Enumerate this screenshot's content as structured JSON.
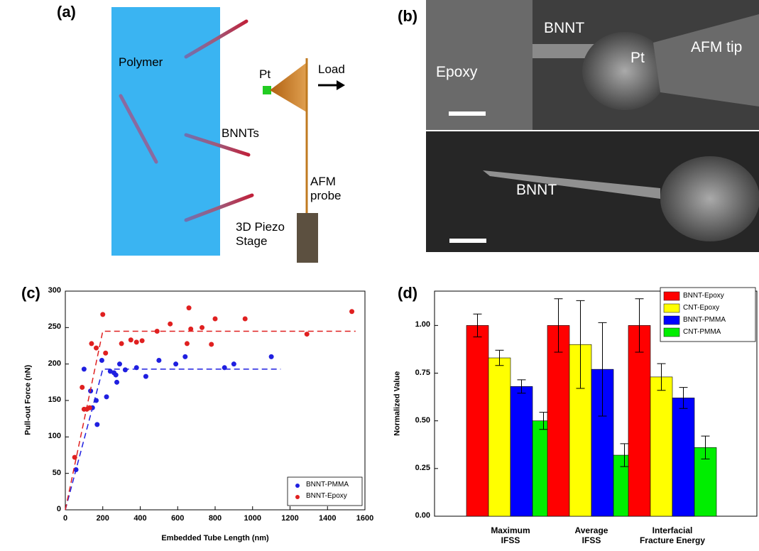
{
  "panel_a": {
    "label": "(a)",
    "polymer": "Polymer",
    "pt": "Pt",
    "load": "Load",
    "bnnts": "BNNTs",
    "probe": "AFM\nprobe",
    "stage": "3D Piezo\nStage"
  },
  "panel_b": {
    "label": "(b)",
    "top": {
      "epoxy": "Epoxy",
      "bnnt": "BNNT",
      "pt": "Pt",
      "tip": "AFM tip"
    },
    "bottom": {
      "bnnt": "BNNT"
    }
  },
  "chart_data": [
    {
      "type": "scatter",
      "label": "(c)",
      "x_label": "Embedded Tube Length (nm)",
      "y_label": "Pull-out Force (nN)",
      "xlim": [
        0,
        1600
      ],
      "xticks": [
        0,
        200,
        400,
        600,
        800,
        1000,
        1200,
        1400,
        1600
      ],
      "ylim": [
        0,
        300
      ],
      "yticks": [
        0,
        50,
        100,
        150,
        200,
        250,
        300
      ],
      "legend": "lower right",
      "series": [
        {
          "name": "BNNT-PMMA",
          "color": "#1f1fe0",
          "x": [
            57,
            100,
            135,
            145,
            165,
            170,
            195,
            220,
            240,
            260,
            270,
            275,
            290,
            320,
            380,
            430,
            500,
            590,
            640,
            850,
            900,
            1100
          ],
          "values": [
            55,
            193,
            163,
            140,
            150,
            117,
            205,
            155,
            190,
            188,
            185,
            175,
            200,
            192,
            195,
            183,
            205,
            200,
            210,
            195,
            200,
            210
          ],
          "fit_x": [
            0,
            200,
            1150
          ],
          "fit_values": [
            0,
            193,
            193
          ]
        },
        {
          "name": "BNNT-Epoxy",
          "color": "#e02020",
          "x": [
            50,
            90,
            100,
            115,
            130,
            140,
            165,
            200,
            215,
            300,
            350,
            380,
            410,
            490,
            560,
            650,
            660,
            670,
            730,
            780,
            800,
            960,
            1290,
            1530
          ],
          "values": [
            72,
            168,
            138,
            138,
            140,
            228,
            222,
            268,
            215,
            228,
            233,
            230,
            232,
            245,
            255,
            228,
            277,
            248,
            250,
            227,
            262,
            262,
            241,
            272
          ],
          "fit_x": [
            0,
            200,
            1550
          ],
          "fit_values": [
            0,
            245,
            245
          ]
        }
      ]
    },
    {
      "type": "bar",
      "label": "(d)",
      "y_label": "Normalized Value",
      "categories": [
        "Maximum\nIFSS",
        "Average\nIFSS",
        "Interfacial\nFracture Energy"
      ],
      "ylim": [
        0,
        1.18
      ],
      "yticks": [
        {
          "value": 0,
          "label": "0.00"
        },
        {
          "value": 0.25,
          "label": "0.25"
        },
        {
          "value": 0.5,
          "label": "0.50"
        },
        {
          "value": 0.75,
          "label": "0.75"
        },
        {
          "value": 1,
          "label": "1.00"
        }
      ],
      "legend": "upper right",
      "series": [
        {
          "name": "BNNT-Epoxy",
          "color": "#ff0000",
          "values": [
            1.0,
            1.0,
            1.0
          ],
          "errors": [
            0.06,
            0.14,
            0.14
          ]
        },
        {
          "name": "CNT-Epoxy",
          "color": "#ffff00",
          "values": [
            0.83,
            0.9,
            0.73
          ],
          "errors": [
            0.04,
            0.23,
            0.07
          ]
        },
        {
          "name": "BNNT-PMMA",
          "color": "#0000ff",
          "values": [
            0.68,
            0.77,
            0.62
          ],
          "errors": [
            0.035,
            0.245,
            0.055
          ]
        },
        {
          "name": "CNT-PMMA",
          "color": "#00ee00",
          "values": [
            0.5,
            0.32,
            0.36
          ],
          "errors": [
            0.045,
            0.06,
            0.06
          ]
        }
      ]
    }
  ]
}
